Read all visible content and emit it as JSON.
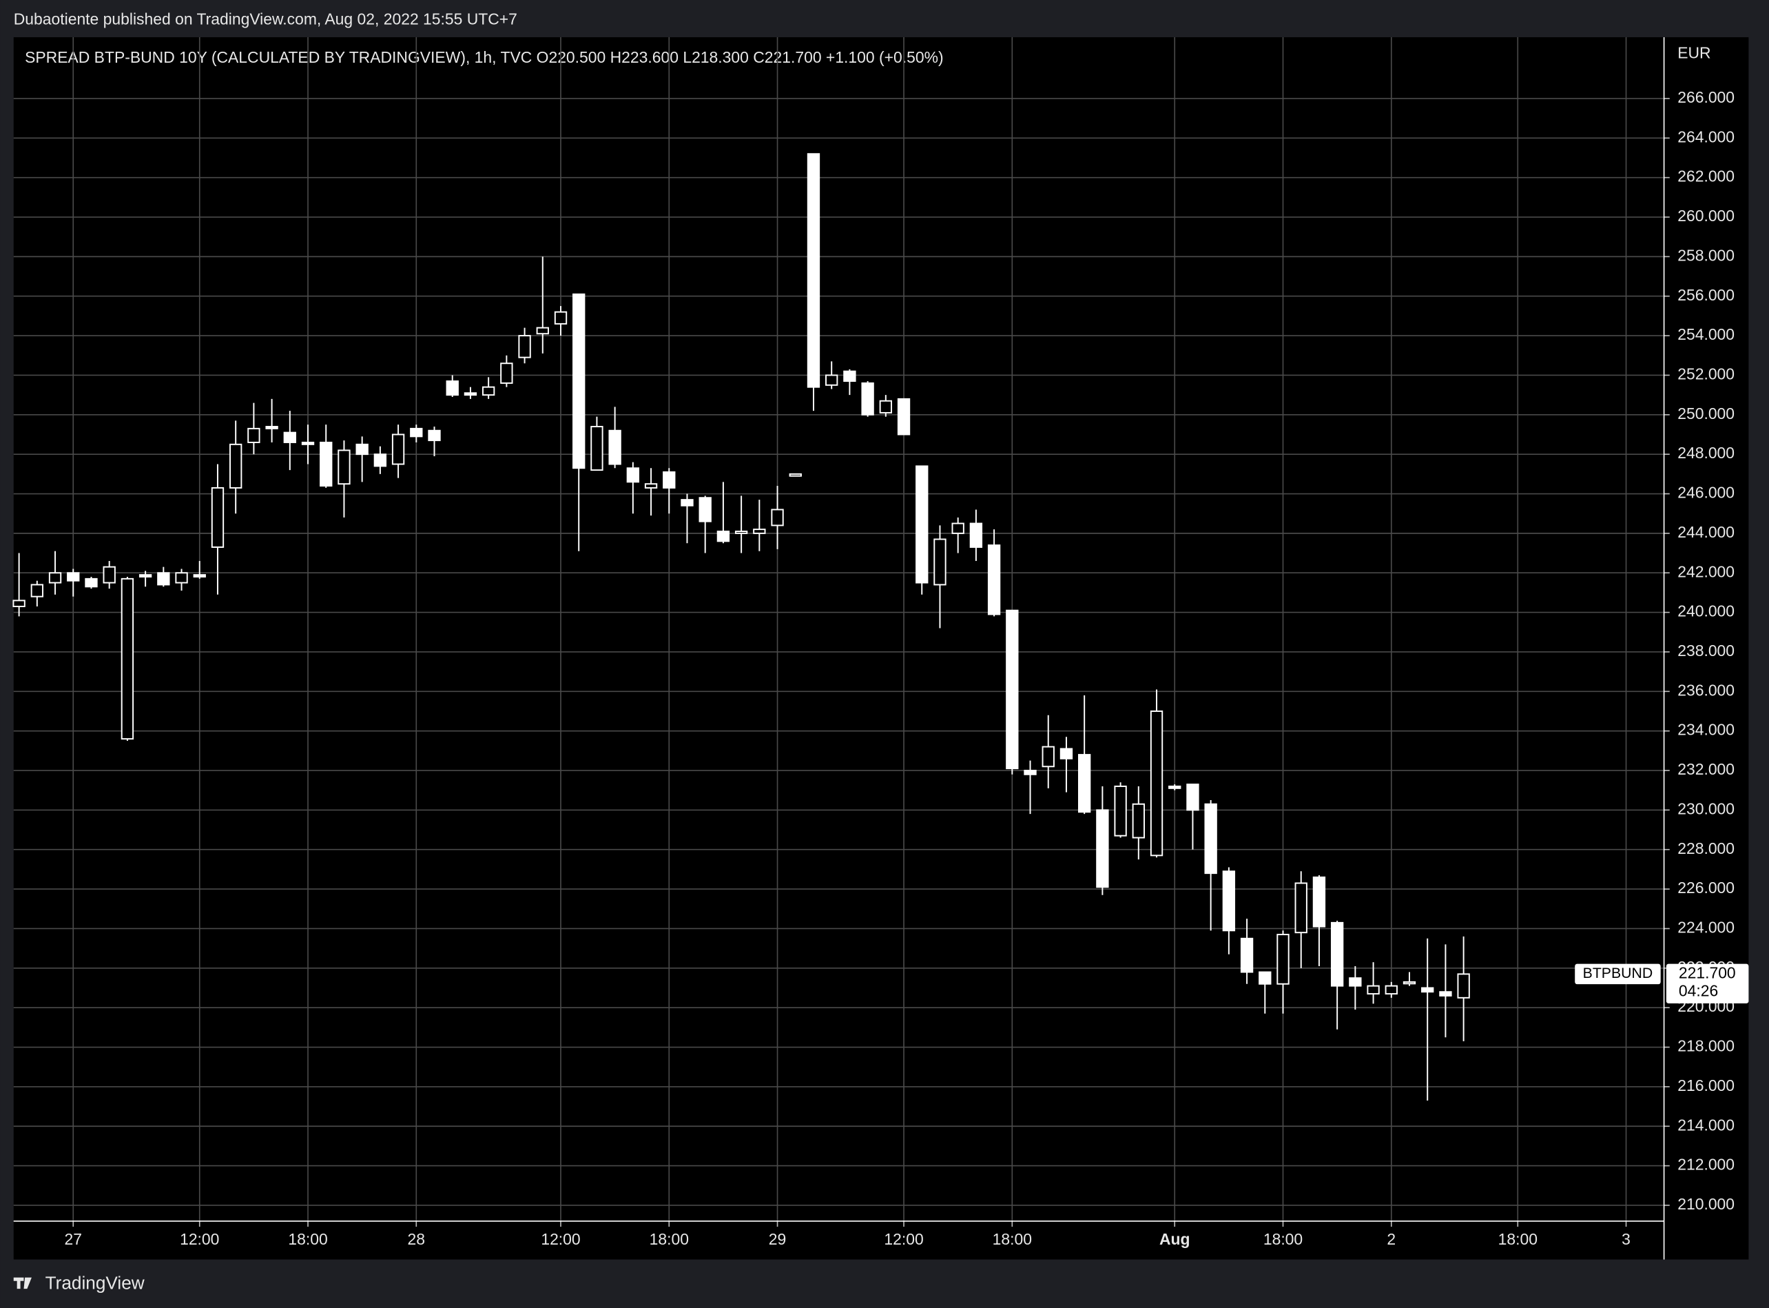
{
  "header": "Dubaotiente published on TradingView.com, Aug 02, 2022 15:55 UTC+7",
  "footer": "TradingView",
  "chart_data": {
    "type": "candlestick",
    "title": "SPREAD BTP-BUND 10Y (CALCULATED BY TRADINGVIEW), 1h, TVC  O220.500  H223.600  L218.300  C221.700  +1.100 (+0.50%)",
    "currency": "EUR",
    "color": "#ffffff",
    "grid": true,
    "open": [
      240.3,
      240.8,
      241.5,
      242.0,
      241.7,
      241.5,
      233.6,
      241.9,
      242.0,
      241.5,
      241.9,
      243.3,
      246.3,
      248.6,
      249.4,
      249.1,
      248.6,
      248.6,
      246.5,
      248.5,
      248.0,
      247.5,
      249.3,
      249.2,
      251.7,
      251.1,
      251.0,
      251.6,
      252.9,
      254.1,
      254.6,
      256.1,
      247.2,
      249.2,
      247.3,
      246.3,
      247.1,
      245.7,
      245.8,
      244.1,
      244.0,
      244.0,
      244.4,
      246.9,
      263.2,
      251.5,
      252.2,
      251.6,
      250.1,
      250.8,
      247.4,
      241.4,
      244.0,
      244.5,
      243.4,
      240.1,
      232.0,
      232.2,
      233.1,
      232.8,
      230.0,
      228.7,
      228.6,
      227.7,
      231.2,
      231.3,
      230.3,
      226.9,
      223.5,
      221.8,
      221.2,
      223.8,
      226.6,
      224.3,
      221.5,
      220.7,
      220.7,
      221.3,
      221.0,
      220.8,
      220.5
    ],
    "high": [
      243.0,
      241.6,
      243.1,
      242.2,
      241.8,
      242.6,
      241.8,
      242.1,
      242.3,
      242.2,
      242.6,
      247.5,
      249.7,
      250.6,
      250.8,
      250.2,
      249.5,
      249.5,
      248.7,
      248.9,
      248.4,
      249.5,
      249.5,
      249.4,
      252.0,
      251.4,
      251.9,
      253.0,
      254.4,
      258.0,
      255.5,
      256.1,
      249.9,
      250.4,
      247.6,
      247.3,
      247.3,
      246.0,
      245.9,
      246.6,
      245.9,
      245.7,
      246.4,
      247.0,
      263.2,
      252.7,
      252.3,
      251.7,
      251.0,
      250.8,
      247.4,
      244.4,
      244.8,
      245.2,
      244.2,
      240.1,
      232.5,
      234.8,
      233.7,
      235.8,
      231.2,
      231.4,
      231.2,
      236.1,
      231.3,
      231.3,
      230.5,
      227.1,
      224.5,
      221.8,
      223.9,
      226.9,
      226.7,
      224.4,
      222.1,
      222.3,
      221.3,
      221.8,
      223.5,
      223.2,
      223.6
    ],
    "low": [
      239.8,
      240.3,
      240.9,
      240.8,
      241.2,
      241.2,
      233.5,
      241.3,
      241.3,
      241.1,
      241.7,
      240.9,
      245.0,
      248.0,
      248.6,
      247.2,
      247.5,
      246.3,
      244.8,
      246.6,
      247.0,
      246.8,
      248.6,
      247.9,
      250.9,
      250.8,
      250.8,
      251.4,
      252.6,
      253.1,
      254.0,
      243.1,
      247.2,
      247.3,
      245.0,
      244.9,
      245.0,
      243.5,
      243.0,
      243.5,
      243.0,
      243.1,
      243.2,
      246.9,
      250.2,
      251.3,
      251.0,
      249.9,
      249.9,
      249.0,
      240.9,
      239.2,
      243.0,
      242.6,
      239.8,
      231.8,
      229.8,
      231.1,
      230.9,
      229.8,
      225.7,
      228.6,
      227.5,
      227.6,
      231.0,
      228.0,
      223.9,
      222.7,
      221.2,
      219.7,
      219.7,
      222.0,
      222.1,
      218.9,
      219.9,
      220.2,
      220.5,
      221.1,
      215.3,
      218.5,
      218.3
    ],
    "close": [
      240.6,
      241.4,
      242.0,
      241.6,
      241.3,
      242.3,
      241.7,
      241.8,
      241.4,
      242.0,
      241.8,
      246.3,
      248.5,
      249.3,
      249.3,
      248.6,
      248.5,
      246.4,
      248.2,
      248.0,
      247.4,
      249.0,
      248.9,
      248.7,
      251.0,
      251.0,
      251.4,
      252.6,
      254.0,
      254.4,
      255.2,
      247.3,
      249.4,
      247.5,
      246.6,
      246.5,
      246.3,
      245.4,
      244.6,
      243.6,
      244.1,
      244.2,
      245.2,
      247.0,
      251.4,
      252.0,
      251.7,
      250.0,
      250.7,
      249.0,
      241.5,
      243.7,
      244.5,
      243.3,
      239.9,
      232.1,
      231.8,
      233.2,
      232.6,
      229.9,
      226.1,
      231.2,
      230.3,
      235.0,
      231.1,
      230.0,
      226.8,
      223.9,
      221.8,
      221.2,
      223.7,
      226.3,
      224.1,
      221.1,
      221.1,
      221.1,
      221.1,
      221.3,
      220.8,
      220.6,
      221.7
    ],
    "xlim": [
      -0.3,
      91.1
    ],
    "xticks": [
      {
        "value": 3,
        "label": "27"
      },
      {
        "value": 10,
        "label": "12:00"
      },
      {
        "value": 16,
        "label": "18:00"
      },
      {
        "value": 22,
        "label": "28"
      },
      {
        "value": 30,
        "label": "12:00"
      },
      {
        "value": 36,
        "label": "18:00"
      },
      {
        "value": 42,
        "label": "29"
      },
      {
        "value": 49,
        "label": "12:00"
      },
      {
        "value": 55,
        "label": "18:00"
      },
      {
        "value": 64,
        "label": "Aug"
      },
      {
        "value": 70,
        "label": "18:00"
      },
      {
        "value": 76,
        "label": "2"
      },
      {
        "value": 83,
        "label": "18:00"
      },
      {
        "value": 89,
        "label": "3"
      }
    ],
    "ylim": [
      209.2,
      269.1
    ],
    "yticks": [
      {
        "value": 210,
        "label": "210.000"
      },
      {
        "value": 212,
        "label": "212.000"
      },
      {
        "value": 214,
        "label": "214.000"
      },
      {
        "value": 216,
        "label": "216.000"
      },
      {
        "value": 218,
        "label": "218.000"
      },
      {
        "value": 220,
        "label": "220.000"
      },
      {
        "value": 222,
        "label": "222.000"
      },
      {
        "value": 224,
        "label": "224.000"
      },
      {
        "value": 226,
        "label": "226.000"
      },
      {
        "value": 228,
        "label": "228.000"
      },
      {
        "value": 230,
        "label": "230.000"
      },
      {
        "value": 232,
        "label": "232.000"
      },
      {
        "value": 234,
        "label": "234.000"
      },
      {
        "value": 236,
        "label": "236.000"
      },
      {
        "value": 238,
        "label": "238.000"
      },
      {
        "value": 240,
        "label": "240.000"
      },
      {
        "value": 242,
        "label": "242.000"
      },
      {
        "value": 244,
        "label": "244.000"
      },
      {
        "value": 246,
        "label": "246.000"
      },
      {
        "value": 248,
        "label": "248.000"
      },
      {
        "value": 250,
        "label": "250.000"
      },
      {
        "value": 252,
        "label": "252.000"
      },
      {
        "value": 254,
        "label": "254.000"
      },
      {
        "value": 256,
        "label": "256.000"
      },
      {
        "value": 258,
        "label": "258.000"
      },
      {
        "value": 260,
        "label": "260.000"
      },
      {
        "value": 262,
        "label": "262.000"
      },
      {
        "value": 264,
        "label": "264.000"
      },
      {
        "value": 266,
        "label": "266.000"
      }
    ],
    "symbol": "BTPBUND",
    "last_price": {
      "value": 221.7,
      "label": "221.700"
    },
    "countdown": "04:26"
  }
}
